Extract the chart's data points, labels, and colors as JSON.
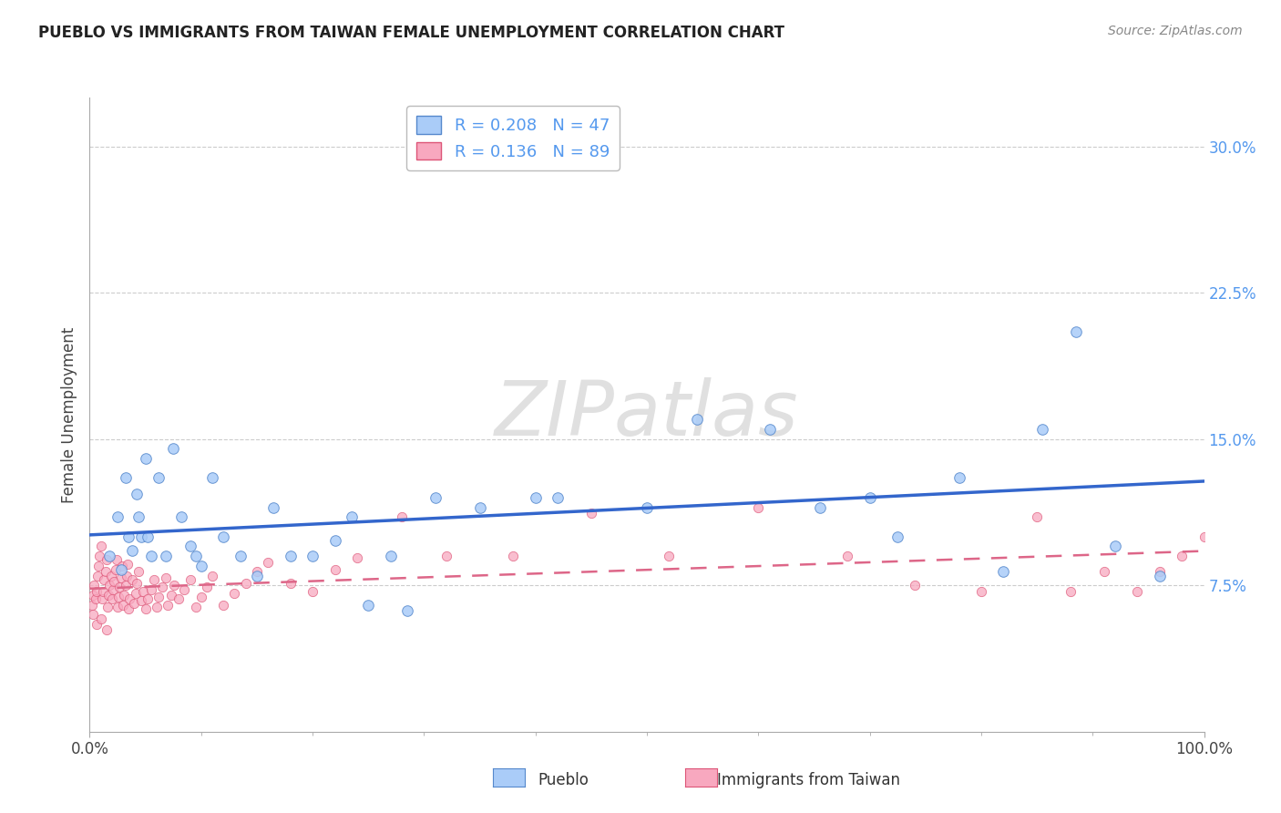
{
  "title": "PUEBLO VS IMMIGRANTS FROM TAIWAN FEMALE UNEMPLOYMENT CORRELATION CHART",
  "source": "Source: ZipAtlas.com",
  "label_pueblo": "Pueblo",
  "label_taiwan": "Immigrants from Taiwan",
  "ylabel": "Female Unemployment",
  "r_pueblo": 0.208,
  "n_pueblo": 47,
  "r_taiwan": 0.136,
  "n_taiwan": 89,
  "xlim": [
    0.0,
    1.0
  ],
  "ylim": [
    0.0,
    0.325
  ],
  "xticks": [
    0.0,
    1.0
  ],
  "xtick_labels": [
    "0.0%",
    "100.0%"
  ],
  "ytick_values": [
    0.075,
    0.15,
    0.225,
    0.3
  ],
  "ytick_labels": [
    "7.5%",
    "15.0%",
    "22.5%",
    "30.0%"
  ],
  "color_pueblo_fill": "#aaccf8",
  "color_pueblo_edge": "#5588cc",
  "color_taiwan_fill": "#f8a8bf",
  "color_taiwan_edge": "#dd5577",
  "trendline_pueblo_color": "#3366cc",
  "trendline_taiwan_color": "#dd6688",
  "grid_color": "#cccccc",
  "watermark_text": "ZIPatlas",
  "watermark_color": "#e0e0e0",
  "title_color": "#222222",
  "axis_label_color": "#444444",
  "ytick_color": "#5599ee",
  "xtick_color": "#444444",
  "source_color": "#888888",
  "pueblo_x": [
    0.018,
    0.025,
    0.028,
    0.032,
    0.035,
    0.038,
    0.042,
    0.044,
    0.046,
    0.05,
    0.052,
    0.055,
    0.062,
    0.068,
    0.075,
    0.082,
    0.09,
    0.095,
    0.1,
    0.11,
    0.12,
    0.135,
    0.15,
    0.165,
    0.18,
    0.2,
    0.22,
    0.235,
    0.25,
    0.27,
    0.285,
    0.31,
    0.35,
    0.4,
    0.42,
    0.5,
    0.545,
    0.61,
    0.655,
    0.7,
    0.725,
    0.78,
    0.82,
    0.855,
    0.885,
    0.92,
    0.96
  ],
  "pueblo_y": [
    0.09,
    0.11,
    0.083,
    0.13,
    0.1,
    0.093,
    0.122,
    0.11,
    0.1,
    0.14,
    0.1,
    0.09,
    0.13,
    0.09,
    0.145,
    0.11,
    0.095,
    0.09,
    0.085,
    0.13,
    0.1,
    0.09,
    0.08,
    0.115,
    0.09,
    0.09,
    0.098,
    0.11,
    0.065,
    0.09,
    0.062,
    0.12,
    0.115,
    0.12,
    0.12,
    0.115,
    0.16,
    0.155,
    0.115,
    0.12,
    0.1,
    0.13,
    0.082,
    0.155,
    0.205,
    0.095,
    0.08
  ],
  "taiwan_x": [
    0.002,
    0.003,
    0.004,
    0.005,
    0.006,
    0.007,
    0.008,
    0.009,
    0.01,
    0.011,
    0.012,
    0.013,
    0.014,
    0.015,
    0.016,
    0.017,
    0.018,
    0.019,
    0.02,
    0.021,
    0.022,
    0.023,
    0.024,
    0.025,
    0.026,
    0.027,
    0.028,
    0.029,
    0.03,
    0.031,
    0.032,
    0.033,
    0.034,
    0.035,
    0.036,
    0.038,
    0.04,
    0.041,
    0.042,
    0.044,
    0.046,
    0.048,
    0.05,
    0.052,
    0.055,
    0.058,
    0.06,
    0.062,
    0.065,
    0.068,
    0.07,
    0.073,
    0.076,
    0.08,
    0.085,
    0.09,
    0.095,
    0.1,
    0.105,
    0.11,
    0.12,
    0.13,
    0.14,
    0.15,
    0.16,
    0.18,
    0.2,
    0.22,
    0.24,
    0.28,
    0.32,
    0.38,
    0.45,
    0.52,
    0.6,
    0.68,
    0.74,
    0.8,
    0.85,
    0.88,
    0.91,
    0.94,
    0.96,
    0.98,
    1.0,
    0.003,
    0.006,
    0.01,
    0.015
  ],
  "taiwan_y": [
    0.065,
    0.07,
    0.075,
    0.068,
    0.072,
    0.08,
    0.085,
    0.09,
    0.095,
    0.068,
    0.072,
    0.078,
    0.082,
    0.088,
    0.064,
    0.07,
    0.075,
    0.08,
    0.068,
    0.073,
    0.077,
    0.083,
    0.088,
    0.064,
    0.069,
    0.074,
    0.079,
    0.085,
    0.065,
    0.07,
    0.075,
    0.08,
    0.086,
    0.063,
    0.068,
    0.078,
    0.066,
    0.071,
    0.076,
    0.082,
    0.067,
    0.072,
    0.063,
    0.068,
    0.073,
    0.078,
    0.064,
    0.069,
    0.074,
    0.079,
    0.065,
    0.07,
    0.075,
    0.068,
    0.073,
    0.078,
    0.064,
    0.069,
    0.074,
    0.08,
    0.065,
    0.071,
    0.076,
    0.082,
    0.087,
    0.076,
    0.072,
    0.083,
    0.089,
    0.11,
    0.09,
    0.09,
    0.112,
    0.09,
    0.115,
    0.09,
    0.075,
    0.072,
    0.11,
    0.072,
    0.082,
    0.072,
    0.082,
    0.09,
    0.1,
    0.06,
    0.055,
    0.058,
    0.052
  ]
}
